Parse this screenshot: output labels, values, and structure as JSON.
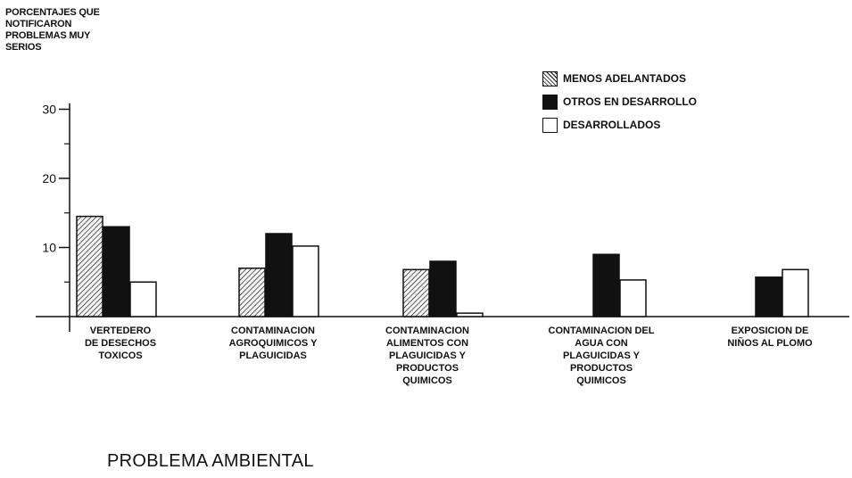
{
  "chart_data": {
    "type": "bar",
    "ylabel_lines": [
      "PORCENTAJES QUE",
      "NOTIFICARON",
      "PROBLEMAS MUY",
      "SERIOS"
    ],
    "xlabel": "PROBLEMA AMBIENTAL",
    "ylim": [
      0,
      30
    ],
    "yticks": [
      10,
      20,
      30
    ],
    "categories": [
      [
        "VERTEDERO",
        "DE DESECHOS",
        "TOXICOS"
      ],
      [
        "CONTAMINACION",
        "AGROQUIMICOS Y",
        "PLAGUICIDAS"
      ],
      [
        "CONTAMINACION",
        "ALIMENTOS CON",
        "PLAGUICIDAS Y",
        "PRODUCTOS",
        "QUIMICOS"
      ],
      [
        "CONTAMINACION DEL",
        "AGUA CON",
        "PLAGUICIDAS Y",
        "PRODUCTOS",
        "QUIMICOS"
      ],
      [
        "EXPOSICION DE",
        "NIÑOS AL PLOMO"
      ]
    ],
    "series": [
      {
        "name": "MENOS ADELANTADOS",
        "style": "hatched",
        "values": [
          14.5,
          7.0,
          6.8,
          null,
          null
        ]
      },
      {
        "name": "OTROS EN DESARROLLO",
        "style": "solid",
        "values": [
          13.0,
          12.0,
          8.0,
          9.0,
          5.7
        ]
      },
      {
        "name": "DESARROLLADOS",
        "style": "white",
        "values": [
          5.0,
          10.2,
          0.5,
          5.3,
          6.8
        ]
      }
    ],
    "grid": false,
    "legend_position": "top-right"
  }
}
